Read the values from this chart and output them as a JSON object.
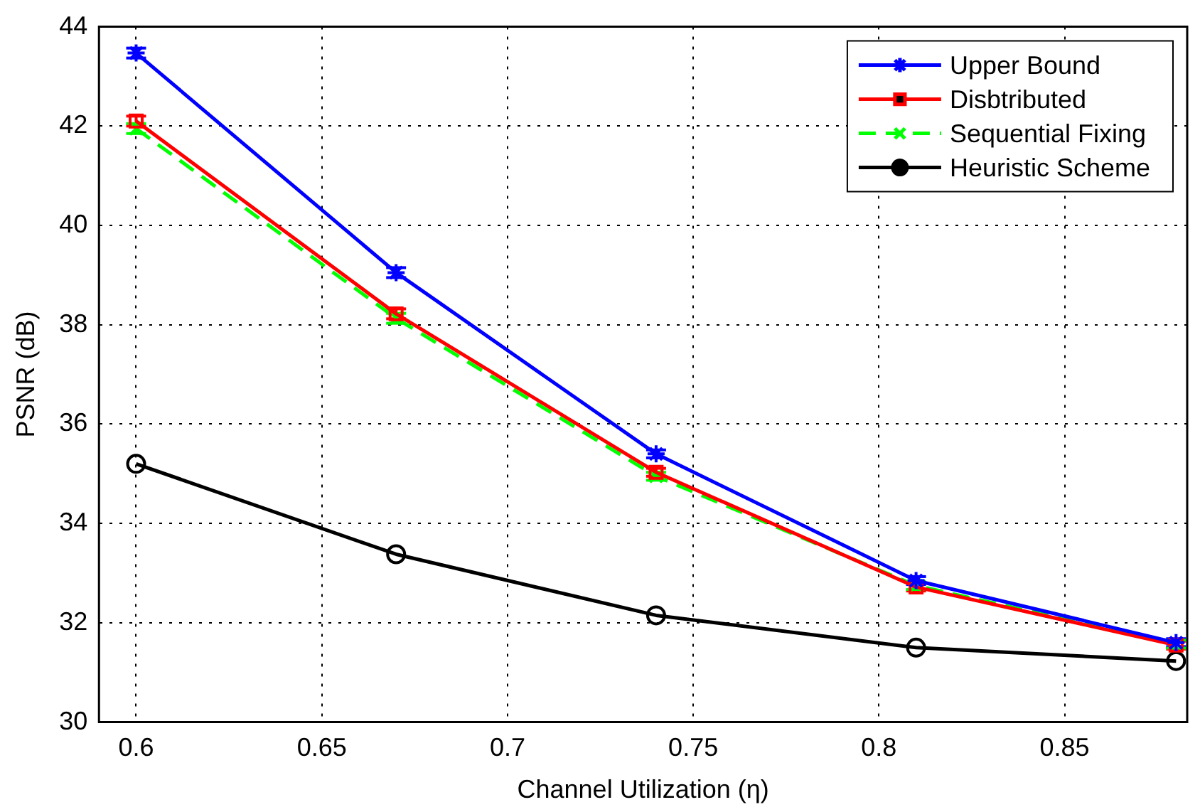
{
  "chart_data": {
    "type": "line",
    "xlabel": "Channel Utilization (η)",
    "ylabel": "PSNR (dB)",
    "x": [
      0.6,
      0.67,
      0.74,
      0.81,
      0.88
    ],
    "xlim": [
      0.59,
      0.883
    ],
    "xticks": [
      0.6,
      0.65,
      0.7,
      0.75,
      0.8,
      0.85
    ],
    "ylim": [
      30,
      44
    ],
    "yticks": [
      30,
      32,
      34,
      36,
      38,
      40,
      42,
      44
    ],
    "grid": true,
    "legend": "top right",
    "series": [
      {
        "name": "Upper Bound",
        "color": "#0000ff",
        "marker": "cross",
        "line_style": "solid",
        "values": [
          43.47,
          39.05,
          35.4,
          32.85,
          31.6
        ],
        "errors": [
          0.1,
          0.1,
          0.08,
          0.08,
          0.08
        ]
      },
      {
        "name": "Disbtributed",
        "color": "#ff0000",
        "marker": "square",
        "line_style": "solid",
        "values": [
          42.1,
          38.22,
          35.03,
          32.72,
          31.55
        ],
        "errors": [
          0.1,
          0.1,
          0.08,
          0.08,
          0.08
        ]
      },
      {
        "name": "Sequential Fixing",
        "color": "#00ff00",
        "marker": "cross",
        "line_style": "dashed",
        "values": [
          41.95,
          38.13,
          34.95,
          32.75,
          31.57
        ],
        "errors": [
          0.1,
          0.1,
          0.08,
          0.08,
          0.08
        ]
      },
      {
        "name": "Heuristic Scheme",
        "color": "#000000",
        "marker": "circle",
        "line_style": "solid",
        "values": [
          35.2,
          33.38,
          32.15,
          31.5,
          31.23
        ]
      }
    ]
  }
}
